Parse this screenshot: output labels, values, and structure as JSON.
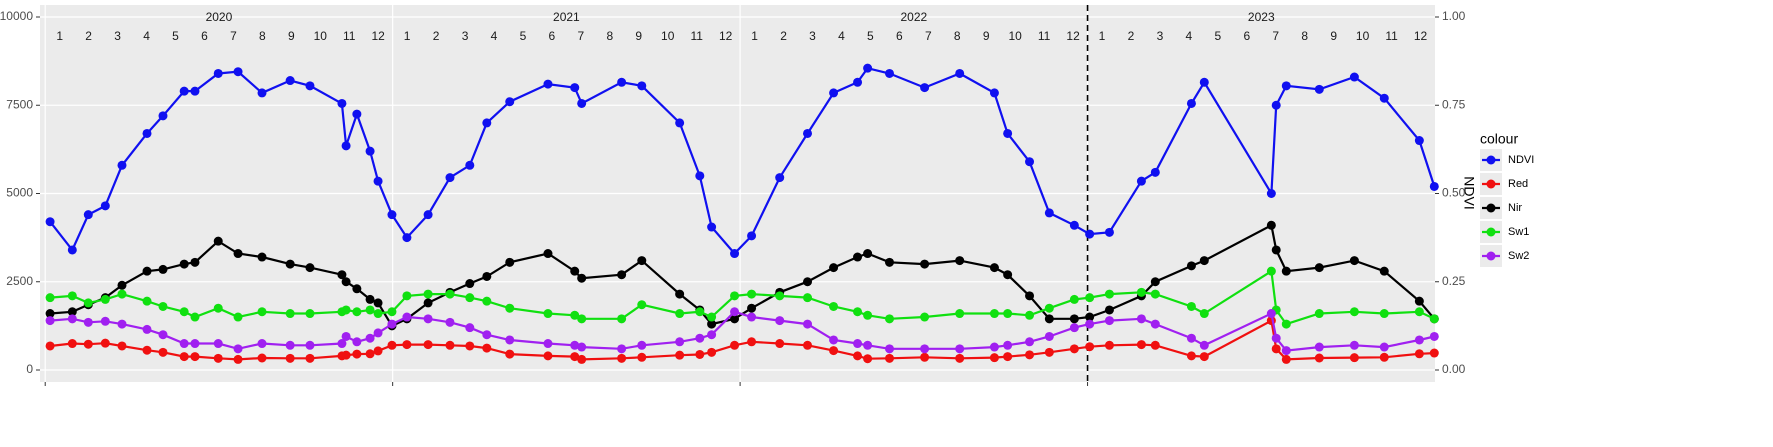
{
  "chart_data": {
    "type": "line",
    "y2_title": "NDVI",
    "legend_title": "colour",
    "legend": "right",
    "grid": true,
    "vline": 2023,
    "years": [
      "2020",
      "2021",
      "2022",
      "2023"
    ],
    "months": [
      "1",
      "2",
      "3",
      "4",
      "5",
      "6",
      "7",
      "8",
      "9",
      "10",
      "11",
      "12"
    ],
    "xlim": [
      2019.985,
      2024.0
    ],
    "xticks": [
      2020,
      2021,
      2022,
      2023
    ],
    "ylim": [
      -340,
      10340
    ],
    "yticks": [
      0,
      2500,
      5000,
      7500,
      10000
    ],
    "y2lim": [
      -0.034,
      1.034
    ],
    "y2ticks": [
      {
        "value": 0,
        "label": "0.00"
      },
      {
        "value": 0.25,
        "label": "0.25"
      },
      {
        "value": 0.5,
        "label": "0.50"
      },
      {
        "value": 0.75,
        "label": "0.75"
      },
      {
        "value": 1,
        "label": "1.00"
      }
    ],
    "x": [
      2020.014,
      2020.078,
      2020.124,
      2020.173,
      2020.221,
      2020.293,
      2020.339,
      2020.4,
      2020.431,
      2020.498,
      2020.555,
      2020.624,
      2020.705,
      2020.762,
      2020.854,
      2020.866,
      2020.897,
      2020.935,
      2020.958,
      2020.998,
      2021.041,
      2021.102,
      2021.165,
      2021.222,
      2021.271,
      2021.337,
      2021.447,
      2021.524,
      2021.544,
      2021.659,
      2021.717,
      2021.826,
      2021.884,
      2021.918,
      2021.984,
      2022.033,
      2022.114,
      2022.194,
      2022.269,
      2022.338,
      2022.367,
      2022.43,
      2022.531,
      2022.632,
      2022.732,
      2022.77,
      2022.833,
      2022.89,
      2022.962,
      2023.006,
      2023.063,
      2023.155,
      2023.195,
      2023.299,
      2023.336,
      2023.529,
      2023.543,
      2023.572,
      2023.667,
      2023.768,
      2023.854,
      2023.955,
      2023.998
    ],
    "series": [
      {
        "name": "NDVI",
        "color": "#1010f0",
        "axis": "y2",
        "values": [
          0.42,
          0.34,
          0.44,
          0.465,
          0.58,
          0.67,
          0.72,
          0.79,
          0.79,
          0.84,
          0.845,
          0.785,
          0.82,
          0.805,
          0.755,
          0.635,
          0.725,
          0.62,
          0.535,
          0.44,
          0.375,
          0.44,
          0.545,
          0.58,
          0.7,
          0.76,
          0.81,
          0.8,
          0.755,
          0.815,
          0.805,
          0.7,
          0.55,
          0.405,
          0.33,
          0.38,
          0.545,
          0.67,
          0.785,
          0.815,
          0.855,
          0.84,
          0.8,
          0.84,
          0.785,
          0.67,
          0.59,
          0.445,
          0.41,
          0.385,
          0.39,
          0.535,
          0.56,
          0.755,
          0.815,
          0.5,
          0.75,
          0.805,
          0.795,
          0.83,
          0.77,
          0.65,
          0.52
        ]
      },
      {
        "name": "Red",
        "color": "#f01010",
        "values": [
          680,
          750,
          730,
          760,
          680,
          560,
          500,
          380,
          380,
          330,
          300,
          340,
          330,
          330,
          400,
          420,
          450,
          460,
          540,
          700,
          720,
          720,
          700,
          680,
          620,
          450,
          400,
          380,
          300,
          330,
          360,
          420,
          440,
          500,
          700,
          800,
          750,
          700,
          550,
          400,
          320,
          330,
          360,
          330,
          350,
          380,
          430,
          500,
          600,
          660,
          700,
          720,
          700,
          400,
          380,
          1400,
          600,
          300,
          340,
          350,
          360,
          460,
          480
        ]
      },
      {
        "name": "Nir",
        "color": "#000000",
        "values": [
          1600,
          1650,
          1850,
          2050,
          2400,
          2800,
          2850,
          3000,
          3050,
          3650,
          3300,
          3200,
          3000,
          2900,
          2700,
          2500,
          2300,
          2000,
          1900,
          1250,
          1450,
          1900,
          2200,
          2450,
          2650,
          3050,
          3300,
          2800,
          2600,
          2700,
          3100,
          2150,
          1700,
          1300,
          1450,
          1750,
          2200,
          2500,
          2900,
          3200,
          3300,
          3050,
          3000,
          3100,
          2900,
          2700,
          2100,
          1450,
          1450,
          1500,
          1700,
          2100,
          2500,
          2950,
          3100,
          4100,
          3400,
          2800,
          2900,
          3100,
          2800,
          1950,
          1450
        ]
      },
      {
        "name": "Sw1",
        "color": "#10e010",
        "values": [
          2050,
          2100,
          1900,
          2000,
          2150,
          1950,
          1800,
          1650,
          1500,
          1750,
          1500,
          1650,
          1600,
          1600,
          1650,
          1700,
          1650,
          1700,
          1600,
          1650,
          2100,
          2150,
          2150,
          2050,
          1950,
          1750,
          1600,
          1550,
          1450,
          1450,
          1850,
          1600,
          1650,
          1500,
          2100,
          2150,
          2100,
          2050,
          1800,
          1650,
          1550,
          1450,
          1500,
          1600,
          1600,
          1600,
          1550,
          1750,
          2000,
          2050,
          2150,
          2200,
          2150,
          1800,
          1600,
          2800,
          1700,
          1300,
          1600,
          1650,
          1600,
          1650,
          1450
        ]
      },
      {
        "name": "Sw2",
        "color": "#a020f0",
        "values": [
          1400,
          1450,
          1350,
          1380,
          1300,
          1150,
          1000,
          750,
          750,
          750,
          600,
          750,
          700,
          700,
          750,
          950,
          800,
          900,
          1050,
          1300,
          1500,
          1450,
          1350,
          1200,
          1000,
          850,
          750,
          700,
          650,
          600,
          700,
          800,
          900,
          1000,
          1650,
          1500,
          1400,
          1300,
          850,
          750,
          700,
          600,
          600,
          600,
          650,
          700,
          800,
          950,
          1200,
          1300,
          1400,
          1450,
          1300,
          900,
          700,
          1600,
          900,
          550,
          650,
          700,
          650,
          850,
          950
        ]
      }
    ]
  }
}
